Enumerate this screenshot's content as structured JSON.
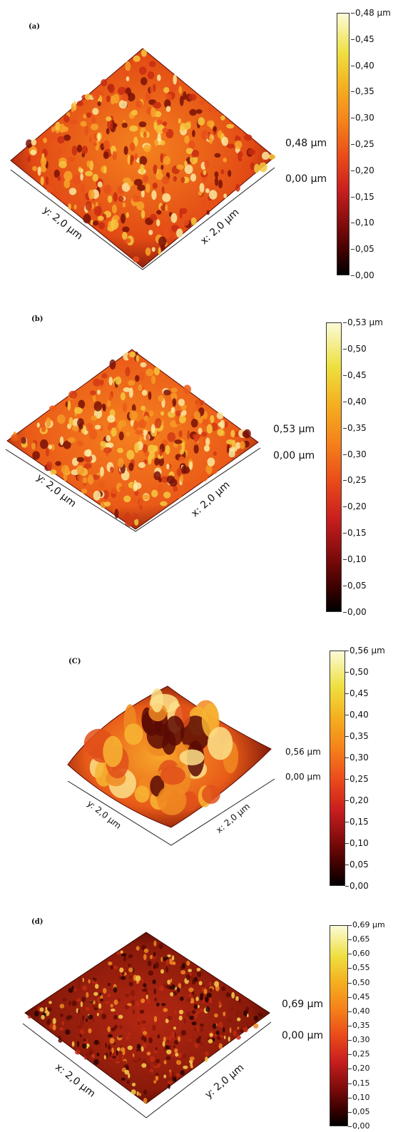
{
  "panels": [
    {
      "label": "(a)",
      "x_axis": "x: 2,0 µm",
      "y_axis": "y: 2,0 µm",
      "height_max": "0,48 µm",
      "height_min": "0,00 µm",
      "ticks": [
        "0,48 µm",
        "0,45",
        "0,40",
        "0,35",
        "0,30",
        "0,25",
        "0,20",
        "0,15",
        "0,10",
        "0,05",
        "0,00"
      ]
    },
    {
      "label": "(b)",
      "x_axis": "x: 2,0 µm",
      "y_axis": "y: 2,0 µm",
      "height_max": "0,53 µm",
      "height_min": "0,00 µm",
      "ticks": [
        "0,53 µm",
        "0,50",
        "0,45",
        "0,40",
        "0,35",
        "0,30",
        "0,25",
        "0,20",
        "0,15",
        "0,10",
        "0,05",
        "0,00"
      ]
    },
    {
      "label": "(C)",
      "x_axis": "x: 2,0 µm",
      "y_axis": "y: 2,0 µm",
      "height_max": "0,56 µm",
      "height_min": "0,00 µm",
      "ticks": [
        "0,56 µm",
        "0,50",
        "0,45",
        "0,40",
        "0,35",
        "0,30",
        "0,25",
        "0,20",
        "0,15",
        "0,10",
        "0,05",
        "0,00"
      ]
    },
    {
      "label": "(d)",
      "x_axis": "x: 2,0 µm",
      "y_axis": "y: 2,0 µm",
      "height_max": "0,69 µm",
      "height_min": "0,00 µm",
      "ticks": [
        "0,69 µm",
        "0,65",
        "0,60",
        "0,55",
        "0,50",
        "0,45",
        "0,40",
        "0,35",
        "0,30",
        "0,25",
        "0,20",
        "0,15",
        "0,10",
        "0,05",
        "0,00"
      ]
    }
  ],
  "colors": {
    "low": "#000000",
    "mid": "#e23a1a",
    "high": "#fbfbd8"
  }
}
